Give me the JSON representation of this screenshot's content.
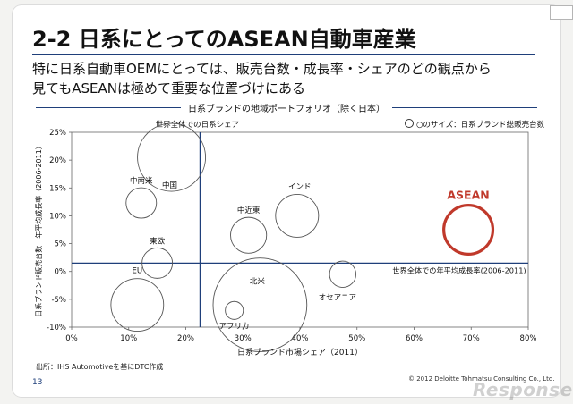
{
  "slide": {
    "title": "2-2 日系にとってのASEAN自動車産業",
    "subtitle": "特に日系自動車OEMにとっては、販売台数・成長率・シェアのどの観点から\n見てもASEANは極めて重要な位置づけにある",
    "source": "出所：IHS Automotiveを基にDTC作成",
    "page_number": "13",
    "copyright": "© 2012 Deloitte Tohmatsu Consulting Co., Ltd.",
    "watermark": "Response."
  },
  "chart_data": {
    "type": "scatter",
    "title": "日系ブランドの地域ポートフォリオ（除く日本）",
    "size_note": "○のサイズ：日系ブランド総販売台数",
    "xlabel": "日系ブランド市場シェア（2011）",
    "ylabel": "日系ブランド販売台数　年平均成長率（2006-2011）",
    "xlim": [
      0,
      80
    ],
    "ylim": [
      -10,
      25
    ],
    "x_ticks": [
      0,
      10,
      20,
      30,
      40,
      50,
      60,
      70,
      80
    ],
    "y_ticks": [
      -10,
      -5,
      0,
      5,
      10,
      15,
      20,
      25
    ],
    "x_tick_labels": [
      "0%",
      "10%",
      "20%",
      "30%",
      "40%",
      "50%",
      "60%",
      "70%",
      "80%"
    ],
    "y_tick_labels": [
      "-10%",
      "-5%",
      "0%",
      "5%",
      "10%",
      "15%",
      "20%",
      "25%"
    ],
    "grid": false,
    "highlight_color": "#c0392b",
    "reference_lines": [
      {
        "orientation": "vertical",
        "value": 22.5,
        "label": "世界全体での日系シェア"
      },
      {
        "orientation": "horizontal",
        "value": 1.5,
        "label": "世界全体での年平均成長率(2006-2011)"
      }
    ],
    "points": [
      {
        "name": "中国",
        "x": 17.5,
        "y": 20.5,
        "size": 100
      },
      {
        "name": "中南米",
        "x": 12.2,
        "y": 12.3,
        "size": 20
      },
      {
        "name": "東欧",
        "x": 15.0,
        "y": 1.5,
        "size": 20
      },
      {
        "name": "EU",
        "x": 11.5,
        "y": -6.0,
        "size": 60
      },
      {
        "name": "中近東",
        "x": 31.0,
        "y": 6.5,
        "size": 28
      },
      {
        "name": "インド",
        "x": 39.5,
        "y": 10.0,
        "size": 40
      },
      {
        "name": "北米",
        "x": 33.0,
        "y": -6.0,
        "size": 190
      },
      {
        "name": "アフリカ",
        "x": 28.5,
        "y": -7.0,
        "size": 7
      },
      {
        "name": "オセアニア",
        "x": 47.5,
        "y": -0.5,
        "size": 15
      },
      {
        "name": "ASEAN",
        "x": 69.5,
        "y": 7.5,
        "size": 52,
        "highlight": true
      }
    ]
  }
}
